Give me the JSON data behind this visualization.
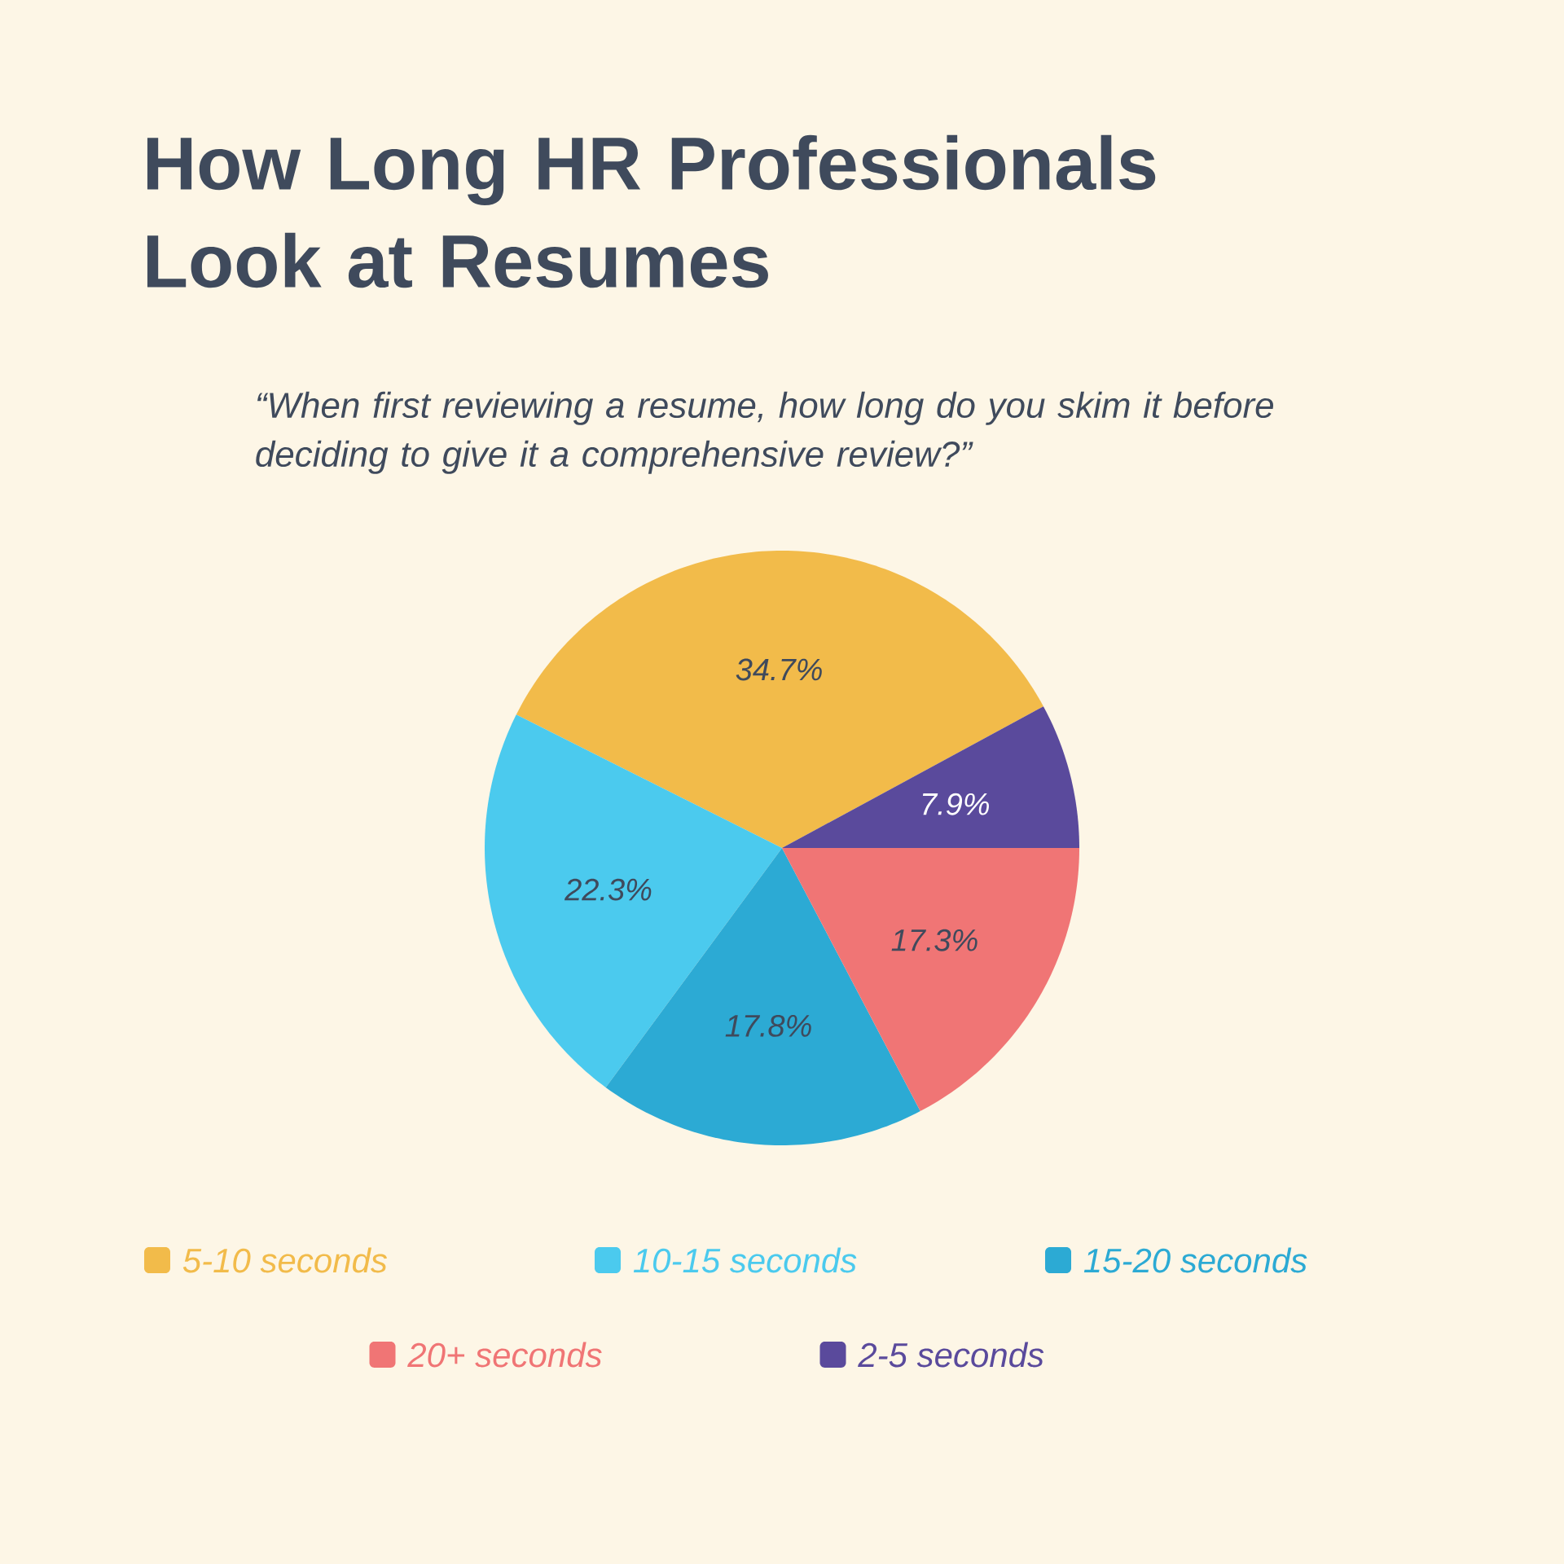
{
  "chart_data": {
    "type": "pie",
    "title": "How Long HR Professionals Look at Resumes",
    "subtitle": "“When first reviewing a resume, how long do you skim it before deciding to give it a comprehensive review?”",
    "categories": [
      "5-10 seconds",
      "10-15 seconds",
      "15-20 seconds",
      "20+ seconds",
      "2-5 seconds"
    ],
    "values": [
      34.7,
      22.3,
      17.8,
      17.3,
      7.9
    ],
    "colors": [
      "#f2bb4a",
      "#4bcaee",
      "#2caad4",
      "#f07575",
      "#5a4a9c"
    ],
    "value_labels": [
      "34.7%",
      "22.3%",
      "17.8%",
      "17.3%",
      "7.9%"
    ],
    "legend": "bottom"
  }
}
